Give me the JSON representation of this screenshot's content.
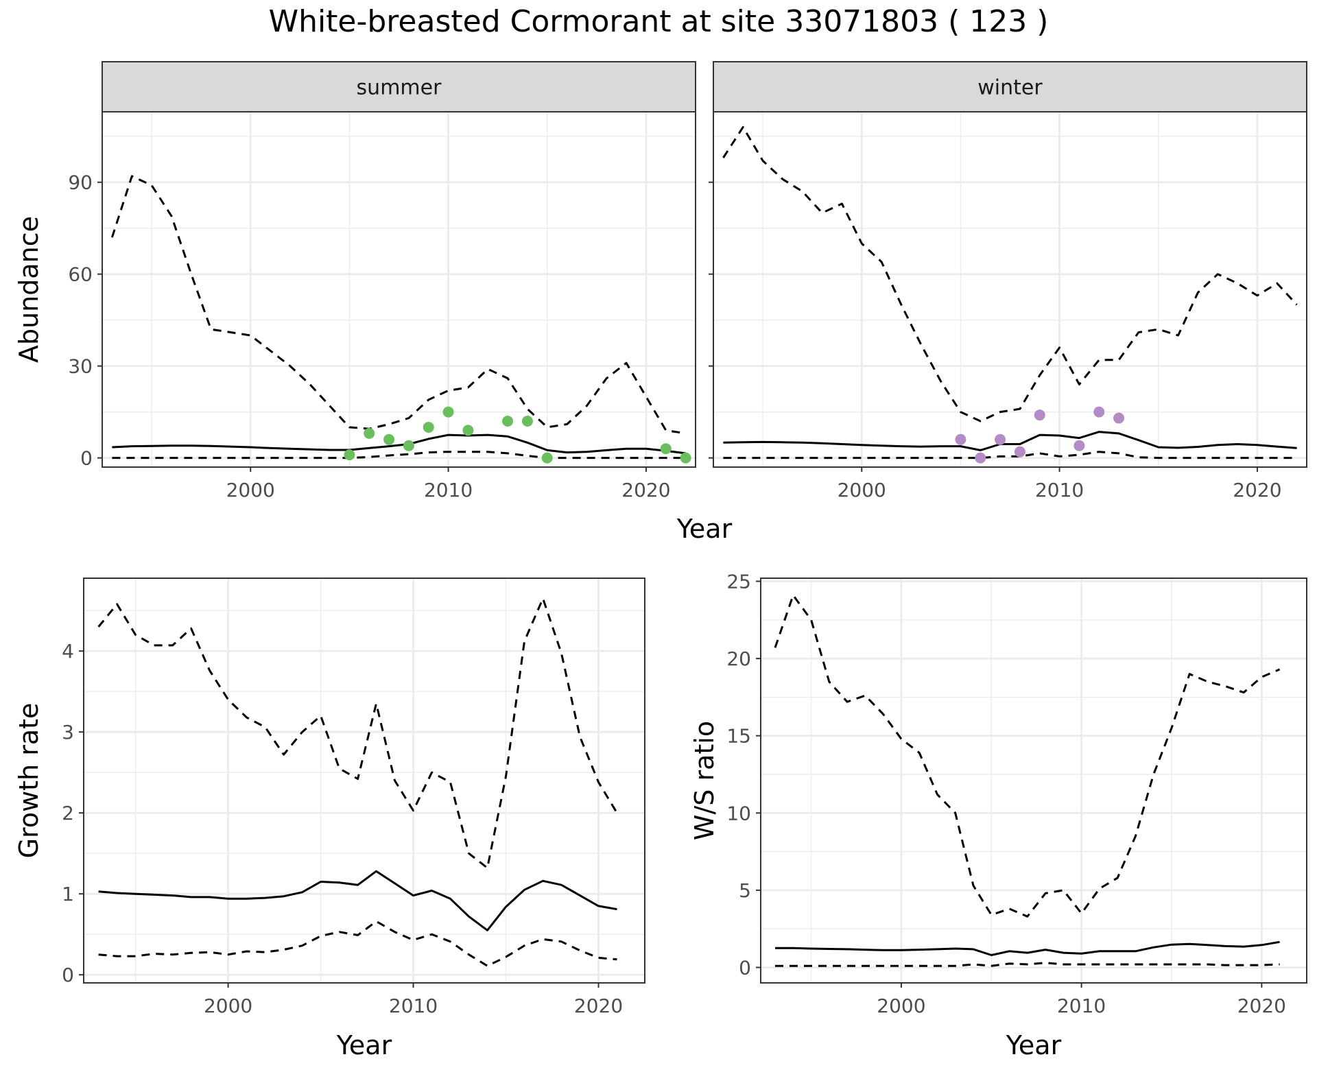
{
  "title": "White-breasted Cormorant at site 33071803 ( 123 )",
  "colors": {
    "summer_points": "#6ABE5E",
    "winter_points": "#B28BC7",
    "line": "#000000",
    "strip_bg": "#D9D9D9",
    "grid": "#EBEBEB"
  },
  "chart_data": [
    {
      "type": "line",
      "panel": "summer",
      "title": "summer",
      "xlabel": "Year",
      "ylabel": "Abundance",
      "xlim": [
        1992.5,
        2022.5
      ],
      "ylim": [
        -3,
        113
      ],
      "xticks": [
        2000,
        2010,
        2020
      ],
      "yticks": [
        0,
        30,
        60,
        90
      ],
      "grid": true,
      "x": [
        1993,
        1994,
        1995,
        1996,
        1997,
        1998,
        1999,
        2000,
        2001,
        2002,
        2003,
        2004,
        2005,
        2006,
        2007,
        2008,
        2009,
        2010,
        2011,
        2012,
        2013,
        2014,
        2015,
        2016,
        2017,
        2018,
        2019,
        2020,
        2021,
        2022
      ],
      "series": [
        {
          "role": "estimate",
          "style": "solid",
          "values": [
            3.5,
            3.8,
            3.9,
            4.0,
            4.0,
            3.9,
            3.7,
            3.5,
            3.2,
            3.0,
            2.8,
            2.6,
            2.6,
            3.2,
            3.8,
            4.5,
            6.2,
            7.5,
            7.3,
            7.5,
            7.0,
            5.0,
            2.5,
            1.8,
            2.0,
            2.5,
            3.0,
            3.0,
            2.3,
            1.5
          ]
        },
        {
          "role": "upper",
          "style": "dashed",
          "values": [
            72,
            92,
            89,
            79,
            60,
            42,
            41,
            40,
            35,
            30,
            24,
            17,
            10,
            9.5,
            11,
            13,
            19,
            22,
            23,
            29,
            26,
            16,
            10,
            11,
            17,
            26,
            31,
            20,
            9,
            8
          ]
        },
        {
          "role": "lower",
          "style": "dashed",
          "values": [
            0,
            0,
            0,
            0,
            0,
            0,
            0,
            0,
            0,
            0,
            0,
            0,
            0,
            0.3,
            0.8,
            1.2,
            1.8,
            2.0,
            2.0,
            2.0,
            1.5,
            0.7,
            0,
            0,
            0,
            0,
            0,
            0,
            0,
            0
          ]
        }
      ],
      "points": {
        "x": [
          2005,
          2006,
          2007,
          2008,
          2009,
          2010,
          2011,
          2013,
          2014,
          2015,
          2021,
          2022
        ],
        "y": [
          1,
          8,
          6,
          4,
          10,
          15,
          9,
          12,
          12,
          0,
          3,
          0
        ]
      }
    },
    {
      "type": "line",
      "panel": "winter",
      "title": "winter",
      "xlabel": "Year",
      "ylabel": "Abundance",
      "xlim": [
        1992.5,
        2022.5
      ],
      "ylim": [
        -3,
        113
      ],
      "xticks": [
        2000,
        2010,
        2020
      ],
      "yticks": [
        0,
        30,
        60,
        90
      ],
      "grid": true,
      "x": [
        1993,
        1994,
        1995,
        1996,
        1997,
        1998,
        1999,
        2000,
        2001,
        2002,
        2003,
        2004,
        2005,
        2006,
        2007,
        2008,
        2009,
        2010,
        2011,
        2012,
        2013,
        2014,
        2015,
        2016,
        2017,
        2018,
        2019,
        2020,
        2021,
        2022
      ],
      "series": [
        {
          "role": "estimate",
          "style": "solid",
          "values": [
            5.0,
            5.1,
            5.2,
            5.1,
            5.0,
            4.8,
            4.5,
            4.2,
            4.0,
            3.8,
            3.7,
            3.8,
            3.8,
            2.5,
            4.5,
            4.5,
            7.5,
            7.3,
            6.5,
            8.5,
            8.0,
            5.8,
            3.5,
            3.3,
            3.6,
            4.2,
            4.5,
            4.2,
            3.7,
            3.2
          ]
        },
        {
          "role": "upper",
          "style": "dashed",
          "values": [
            98,
            108,
            97,
            91,
            87,
            80,
            83,
            70,
            64,
            50,
            37,
            25,
            15,
            12,
            15,
            16,
            27,
            36,
            24,
            32,
            32,
            41,
            42,
            40,
            54,
            60,
            57,
            53,
            57,
            50
          ]
        },
        {
          "role": "lower",
          "style": "dashed",
          "values": [
            0,
            0,
            0,
            0,
            0,
            0,
            0,
            0,
            0,
            0,
            0,
            0,
            0,
            0,
            0.5,
            0.5,
            1.5,
            0.5,
            1.0,
            2.0,
            1.5,
            0.2,
            0,
            0,
            0,
            0,
            0,
            0,
            0,
            0
          ]
        }
      ],
      "points": {
        "x": [
          2005,
          2006,
          2007,
          2008,
          2009,
          2011,
          2012,
          2013
        ],
        "y": [
          6,
          0,
          6,
          2,
          14,
          4,
          15,
          13
        ]
      }
    },
    {
      "type": "line",
      "panel": "growth",
      "title": "",
      "xlabel": "Year",
      "ylabel": "Growth rate",
      "xlim": [
        1992.2,
        2022.5
      ],
      "ylim": [
        -0.1,
        4.9
      ],
      "xticks": [
        2000,
        2010,
        2020
      ],
      "yticks": [
        0,
        1,
        2,
        3,
        4
      ],
      "grid": true,
      "x": [
        1993,
        1994,
        1995,
        1996,
        1997,
        1998,
        1999,
        2000,
        2001,
        2002,
        2003,
        2004,
        2005,
        2006,
        2007,
        2008,
        2009,
        2010,
        2011,
        2012,
        2013,
        2014,
        2015,
        2016,
        2017,
        2018,
        2019,
        2020,
        2021
      ],
      "series": [
        {
          "role": "estimate",
          "style": "solid",
          "values": [
            1.03,
            1.01,
            1.0,
            0.99,
            0.98,
            0.96,
            0.96,
            0.94,
            0.94,
            0.95,
            0.97,
            1.02,
            1.15,
            1.14,
            1.11,
            1.28,
            1.13,
            0.98,
            1.04,
            0.94,
            0.72,
            0.55,
            0.84,
            1.05,
            1.16,
            1.11,
            0.98,
            0.85,
            0.81
          ]
        },
        {
          "role": "upper",
          "style": "dashed",
          "values": [
            4.3,
            4.58,
            4.2,
            4.07,
            4.07,
            4.28,
            3.76,
            3.4,
            3.18,
            3.06,
            2.72,
            3.0,
            3.2,
            2.55,
            2.42,
            3.35,
            2.4,
            2.03,
            2.5,
            2.38,
            1.5,
            1.32,
            2.45,
            4.12,
            4.65,
            3.97,
            2.94,
            2.38,
            2.0
          ]
        },
        {
          "role": "lower",
          "style": "dashed",
          "values": [
            0.25,
            0.23,
            0.23,
            0.26,
            0.25,
            0.27,
            0.28,
            0.25,
            0.29,
            0.28,
            0.31,
            0.36,
            0.48,
            0.53,
            0.49,
            0.66,
            0.53,
            0.43,
            0.5,
            0.41,
            0.25,
            0.11,
            0.22,
            0.36,
            0.44,
            0.41,
            0.3,
            0.21,
            0.19
          ]
        }
      ]
    },
    {
      "type": "line",
      "panel": "ratio",
      "title": "",
      "xlabel": "Year",
      "ylabel": "W/S ratio",
      "xlim": [
        1992.2,
        2022.5
      ],
      "ylim": [
        -1.0,
        25.2
      ],
      "xticks": [
        2000,
        2010,
        2020
      ],
      "yticks": [
        0,
        5,
        10,
        15,
        20,
        25
      ],
      "grid": true,
      "x": [
        1993,
        1994,
        1995,
        1996,
        1997,
        1998,
        1999,
        2000,
        2001,
        2002,
        2003,
        2004,
        2005,
        2006,
        2007,
        2008,
        2009,
        2010,
        2011,
        2012,
        2013,
        2014,
        2015,
        2016,
        2017,
        2018,
        2019,
        2020,
        2021
      ],
      "series": [
        {
          "role": "estimate",
          "style": "solid",
          "values": [
            1.25,
            1.25,
            1.22,
            1.2,
            1.18,
            1.15,
            1.12,
            1.12,
            1.15,
            1.18,
            1.22,
            1.18,
            0.8,
            1.05,
            0.95,
            1.15,
            0.95,
            0.9,
            1.05,
            1.05,
            1.05,
            1.3,
            1.48,
            1.52,
            1.45,
            1.38,
            1.35,
            1.45,
            1.65
          ]
        },
        {
          "role": "upper",
          "style": "dashed",
          "values": [
            20.7,
            24.1,
            22.5,
            18.5,
            17.2,
            17.6,
            16.4,
            14.8,
            13.9,
            11.2,
            10.0,
            5.3,
            3.4,
            3.8,
            3.3,
            4.8,
            5.0,
            3.5,
            5.1,
            5.8,
            8.5,
            12.5,
            15.5,
            19.0,
            18.5,
            18.2,
            17.8,
            18.8,
            19.3
          ]
        },
        {
          "role": "lower",
          "style": "dashed",
          "values": [
            0.1,
            0.1,
            0.1,
            0.1,
            0.1,
            0.1,
            0.1,
            0.1,
            0.1,
            0.1,
            0.1,
            0.2,
            0.1,
            0.25,
            0.2,
            0.3,
            0.2,
            0.2,
            0.2,
            0.2,
            0.2,
            0.2,
            0.2,
            0.2,
            0.2,
            0.15,
            0.15,
            0.15,
            0.2
          ]
        }
      ]
    }
  ]
}
